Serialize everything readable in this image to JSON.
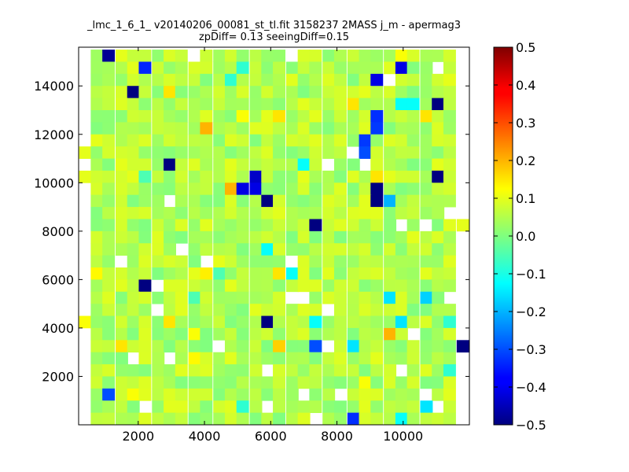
{
  "chart_data": {
    "type": "heatmap",
    "title_line1": "_lmc_1_6_1_ v20140206_00081_st_tl.fit 3158237 2MASS j_m - apermag3",
    "title_line2": "zpDiff= 0.13 seeingDiff=0.15",
    "xlabel": "",
    "ylabel": "",
    "xlim": [
      200,
      12000
    ],
    "ylim": [
      0,
      15600
    ],
    "xticks": [
      2000,
      4000,
      6000,
      8000,
      10000
    ],
    "yticks": [
      2000,
      4000,
      6000,
      8000,
      10000,
      12000,
      14000
    ],
    "cell_size_x": 369,
    "cell_size_y": 500,
    "grid": false,
    "colormap": "jet",
    "colorbar": {
      "range": [
        -0.5,
        0.5
      ],
      "ticks": [
        -0.5,
        -0.4,
        -0.3,
        -0.2,
        -0.1,
        0.0,
        0.1,
        0.2,
        0.3,
        0.4,
        0.5
      ],
      "tick_labels": [
        "−0.5",
        "−0.4",
        "−0.3",
        "−0.2",
        "−0.1",
        "0.0",
        "0.1",
        "0.2",
        "0.3",
        "0.4",
        "0.5"
      ]
    },
    "columns_x": [
      400,
      750,
      1100,
      1500,
      1850,
      2200,
      2600,
      2950,
      3300,
      3700,
      4050,
      4450,
      4800,
      5150,
      5550,
      5900,
      6250,
      6650,
      7000,
      7350,
      7750,
      8100,
      8500,
      8850,
      9200,
      9600,
      9950,
      10300,
      10700,
      11050,
      11400,
      11800
    ],
    "rows_y": [
      15250,
      14750,
      14250,
      13750,
      13250,
      12750,
      12250,
      11750,
      11250,
      10750,
      10250,
      9750,
      9250,
      8750,
      8250,
      7750,
      7250,
      6750,
      6250,
      5750,
      5250,
      4750,
      4250,
      3750,
      3250,
      2750,
      2250,
      1750,
      1250,
      750,
      250
    ],
    "background_value": 0.05,
    "missing_cells": [
      {
        "x": 6650,
        "y": 15250
      },
      {
        "x": 3700,
        "y": 15250
      },
      {
        "x": 11050,
        "y": 14750
      },
      {
        "x": 9600,
        "y": 14250
      },
      {
        "x": 8500,
        "y": 11250
      },
      {
        "x": 7750,
        "y": 10750
      },
      {
        "x": 8850,
        "y": 10750
      },
      {
        "x": 2950,
        "y": 9250
      },
      {
        "x": 10700,
        "y": 8250
      },
      {
        "x": 11400,
        "y": 8750
      },
      {
        "x": 9950,
        "y": 8250
      },
      {
        "x": 3300,
        "y": 7250
      },
      {
        "x": 4050,
        "y": 6750
      },
      {
        "x": 1500,
        "y": 6750
      },
      {
        "x": 6650,
        "y": 6750
      },
      {
        "x": 2600,
        "y": 5750
      },
      {
        "x": 6650,
        "y": 5250
      },
      {
        "x": 7000,
        "y": 5250
      },
      {
        "x": 11400,
        "y": 5250
      },
      {
        "x": 7750,
        "y": 4750
      },
      {
        "x": 2600,
        "y": 4750
      },
      {
        "x": 10300,
        "y": 3750
      },
      {
        "x": 4450,
        "y": 3250
      },
      {
        "x": 7750,
        "y": 3250
      },
      {
        "x": 1850,
        "y": 2750
      },
      {
        "x": 2950,
        "y": 2750
      },
      {
        "x": 5900,
        "y": 2250
      },
      {
        "x": 9950,
        "y": 2250
      },
      {
        "x": 7000,
        "y": 1250
      },
      {
        "x": 8100,
        "y": 1250
      },
      {
        "x": 10700,
        "y": 1250
      },
      {
        "x": 2200,
        "y": 750
      },
      {
        "x": 5900,
        "y": 750
      },
      {
        "x": 7350,
        "y": 250
      },
      {
        "x": 11050,
        "y": 750
      },
      {
        "x": 400,
        "y": 13250
      },
      {
        "x": 11800,
        "y": 13750
      },
      {
        "x": 11800,
        "y": 11250
      }
    ],
    "cells": [
      {
        "x": 1100,
        "y": 15250,
        "v": -0.48
      },
      {
        "x": 2200,
        "y": 14750,
        "v": -0.34
      },
      {
        "x": 9950,
        "y": 14750,
        "v": -0.4
      },
      {
        "x": 9200,
        "y": 14250,
        "v": -0.4
      },
      {
        "x": 1850,
        "y": 13750,
        "v": -0.5
      },
      {
        "x": 11050,
        "y": 13250,
        "v": -0.5
      },
      {
        "x": 9950,
        "y": 13250,
        "v": -0.12
      },
      {
        "x": 10300,
        "y": 13250,
        "v": -0.12
      },
      {
        "x": 9200,
        "y": 12750,
        "v": -0.33
      },
      {
        "x": 9200,
        "y": 12250,
        "v": -0.32
      },
      {
        "x": 8850,
        "y": 11750,
        "v": -0.32
      },
      {
        "x": 8850,
        "y": 11250,
        "v": -0.3
      },
      {
        "x": 2950,
        "y": 10750,
        "v": -0.5
      },
      {
        "x": 5550,
        "y": 10250,
        "v": -0.43
      },
      {
        "x": 11050,
        "y": 10250,
        "v": -0.5
      },
      {
        "x": 9200,
        "y": 9750,
        "v": -0.5
      },
      {
        "x": 9200,
        "y": 9250,
        "v": -0.5
      },
      {
        "x": 5150,
        "y": 9750,
        "v": -0.4
      },
      {
        "x": 5550,
        "y": 9750,
        "v": -0.4
      },
      {
        "x": 5900,
        "y": 9250,
        "v": -0.5
      },
      {
        "x": 7350,
        "y": 8250,
        "v": -0.5
      },
      {
        "x": 2200,
        "y": 5750,
        "v": -0.5
      },
      {
        "x": 5900,
        "y": 4250,
        "v": -0.5
      },
      {
        "x": 11800,
        "y": 3250,
        "v": -0.5
      },
      {
        "x": 7350,
        "y": 3250,
        "v": -0.3
      },
      {
        "x": 1100,
        "y": 1250,
        "v": -0.3
      },
      {
        "x": 8500,
        "y": 250,
        "v": -0.33
      },
      {
        "x": 7000,
        "y": 10750,
        "v": -0.12
      },
      {
        "x": 9600,
        "y": 9250,
        "v": -0.2
      },
      {
        "x": 5900,
        "y": 7250,
        "v": -0.12
      },
      {
        "x": 6650,
        "y": 6250,
        "v": -0.12
      },
      {
        "x": 9600,
        "y": 5250,
        "v": -0.15
      },
      {
        "x": 10700,
        "y": 5250,
        "v": -0.17
      },
      {
        "x": 7350,
        "y": 4250,
        "v": -0.12
      },
      {
        "x": 9950,
        "y": 4250,
        "v": -0.15
      },
      {
        "x": 8500,
        "y": 3250,
        "v": -0.15
      },
      {
        "x": 10700,
        "y": 750,
        "v": -0.15
      },
      {
        "x": 9950,
        "y": 250,
        "v": -0.12
      },
      {
        "x": 4800,
        "y": 14250,
        "v": -0.08
      },
      {
        "x": 5150,
        "y": 14750,
        "v": -0.08
      },
      {
        "x": 2200,
        "y": 10250,
        "v": -0.05
      },
      {
        "x": 3700,
        "y": 5250,
        "v": -0.05
      },
      {
        "x": 4450,
        "y": 6250,
        "v": -0.05
      },
      {
        "x": 11400,
        "y": 4250,
        "v": -0.08
      },
      {
        "x": 11400,
        "y": 2250,
        "v": -0.08
      },
      {
        "x": 5150,
        "y": 750,
        "v": -0.08
      },
      {
        "x": 4050,
        "y": 12250,
        "v": 0.2
      },
      {
        "x": 4800,
        "y": 9750,
        "v": 0.2
      },
      {
        "x": 9600,
        "y": 3750,
        "v": 0.2
      },
      {
        "x": 6250,
        "y": 3250,
        "v": 0.17
      },
      {
        "x": 6250,
        "y": 12750,
        "v": 0.15
      },
      {
        "x": 2950,
        "y": 13750,
        "v": 0.15
      },
      {
        "x": 8500,
        "y": 13250,
        "v": 0.15
      },
      {
        "x": 10700,
        "y": 12750,
        "v": 0.15
      },
      {
        "x": 9200,
        "y": 10250,
        "v": 0.15
      },
      {
        "x": 6250,
        "y": 6250,
        "v": 0.15
      },
      {
        "x": 4050,
        "y": 6250,
        "v": 0.14
      },
      {
        "x": 750,
        "y": 6250,
        "v": 0.13
      },
      {
        "x": 2950,
        "y": 4250,
        "v": 0.15
      },
      {
        "x": 1500,
        "y": 3250,
        "v": 0.15
      },
      {
        "x": 400,
        "y": 4250,
        "v": 0.12
      },
      {
        "x": 3700,
        "y": 2750,
        "v": 0.13
      },
      {
        "x": 5150,
        "y": 12750,
        "v": 0.12
      },
      {
        "x": 1850,
        "y": 1250,
        "v": 0.12
      },
      {
        "x": 8850,
        "y": 1750,
        "v": 0.12
      },
      {
        "x": 9950,
        "y": 15250,
        "v": 0.12
      },
      {
        "x": 400,
        "y": 11250,
        "v": 0.1
      },
      {
        "x": 400,
        "y": 10250,
        "v": 0.1
      },
      {
        "x": 3700,
        "y": 3750,
        "v": 0.12
      },
      {
        "x": 11800,
        "y": 8250,
        "v": 0.1
      }
    ]
  }
}
